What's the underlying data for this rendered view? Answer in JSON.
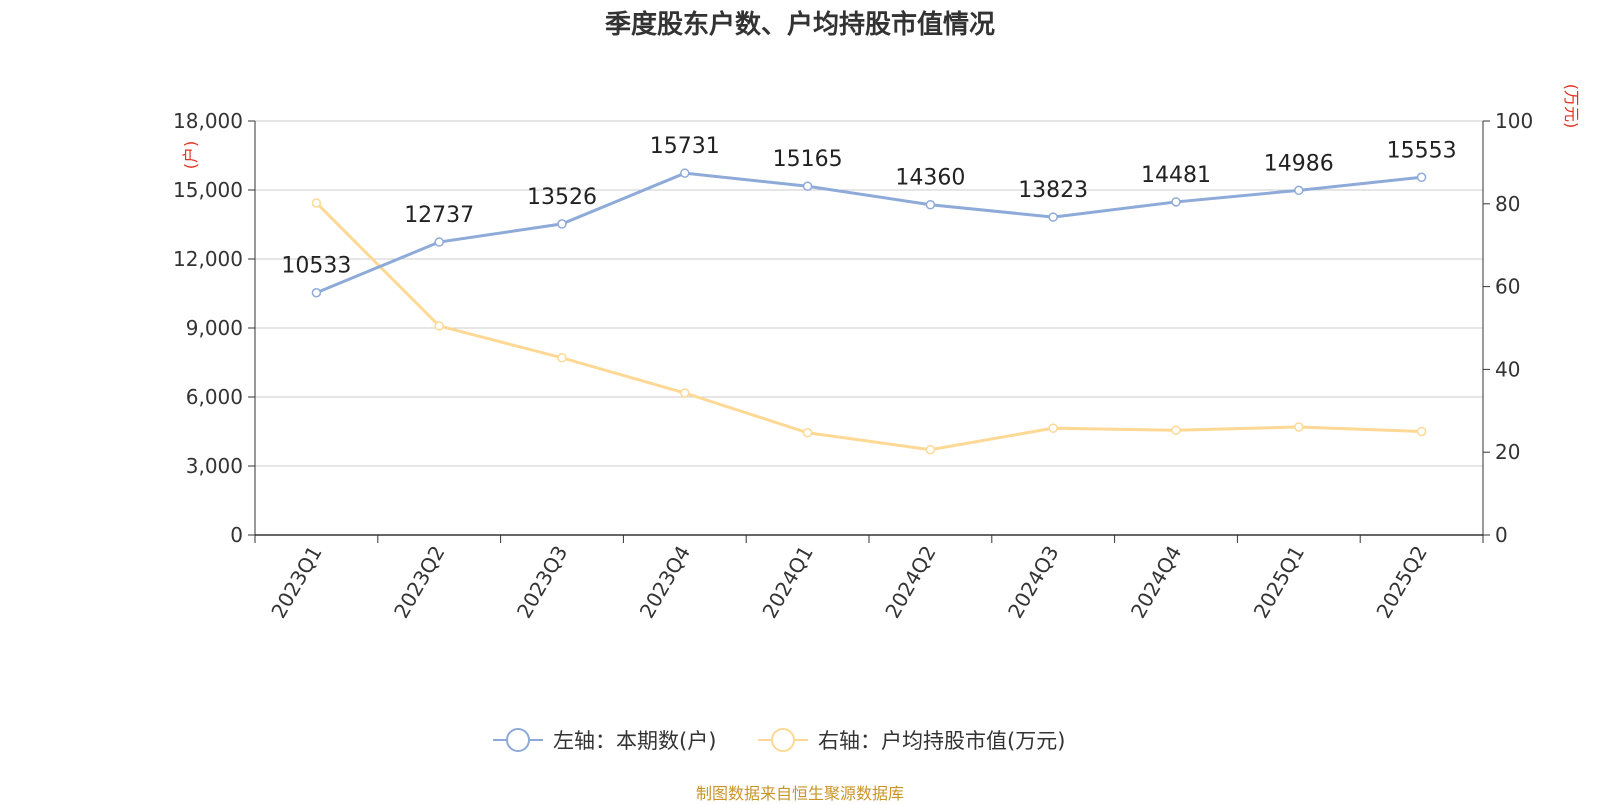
{
  "title": "季度股东户数、户均持股市值情况",
  "source": "制图数据来自恒生聚源数据库",
  "colors": {
    "left_series": "#8eaad8",
    "right_series": "#fdd995",
    "unit": "#e0301e",
    "source": "#c8942a",
    "grid": "#cccccc",
    "axis": "#333333"
  },
  "chart_data": {
    "type": "line",
    "categories": [
      "2023Q1",
      "2023Q2",
      "2023Q3",
      "2023Q4",
      "2024Q1",
      "2024Q2",
      "2024Q3",
      "2024Q4",
      "2025Q1",
      "2025Q2"
    ],
    "left_axis": {
      "unit": "(户)",
      "min": 0,
      "max": 18000,
      "ticks": [
        "0",
        "3,000",
        "6,000",
        "9,000",
        "12,000",
        "15,000",
        "18,000"
      ],
      "tick_values": [
        0,
        3000,
        6000,
        9000,
        12000,
        15000,
        18000
      ]
    },
    "right_axis": {
      "unit": "(万元)",
      "min": 0,
      "max": 100,
      "ticks": [
        "0",
        "20",
        "40",
        "60",
        "80",
        "100"
      ],
      "tick_values": [
        0,
        20,
        40,
        60,
        80,
        100
      ]
    },
    "series": [
      {
        "name": "左轴：本期数(户)",
        "axis": "left",
        "values": [
          10533,
          12737,
          13526,
          15731,
          15165,
          14360,
          13823,
          14481,
          14986,
          15553
        ],
        "labels": [
          "10533",
          "12737",
          "13526",
          "15731",
          "15165",
          "14360",
          "13823",
          "14481",
          "14986",
          "15553"
        ]
      },
      {
        "name": "右轴：户均持股市值(万元)",
        "axis": "right",
        "values": [
          80.2,
          50.5,
          42.8,
          34.3,
          24.7,
          20.6,
          25.8,
          25.3,
          26.1,
          25.0
        ]
      }
    ],
    "grid": true,
    "legend_position": "bottom"
  }
}
